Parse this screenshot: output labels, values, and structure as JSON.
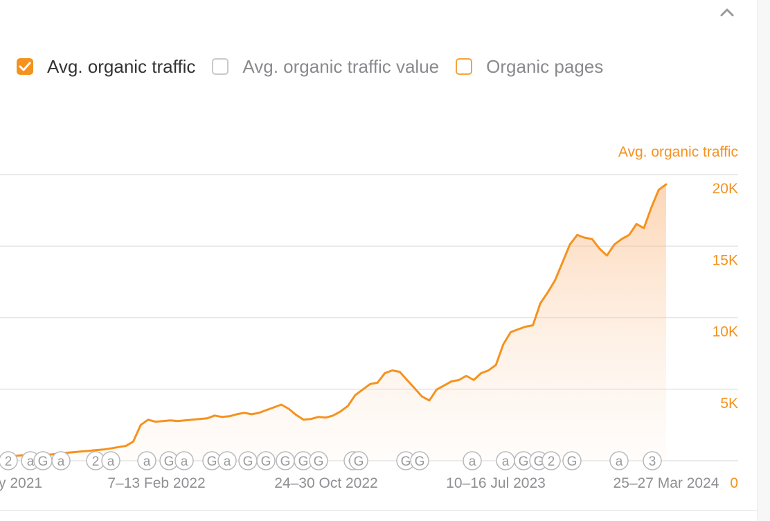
{
  "legend": {
    "items": [
      {
        "label": "Avg. organic traffic",
        "checked": true
      },
      {
        "label": "Avg. organic traffic value",
        "checked": false
      },
      {
        "label": "Organic pages",
        "checked": false
      }
    ]
  },
  "icons": {
    "collapse": "chevron-up-icon",
    "checkbox_check": "checkmark-icon"
  },
  "colors": {
    "accent": "#f5921e",
    "axis_text": "#f5921e",
    "date_text": "#8f8f94",
    "gridline": "#e4e4e6",
    "marker": "#b9b9bd"
  },
  "chart_data": {
    "type": "area",
    "ylabel": "Avg. organic traffic",
    "y_ticks": [
      0,
      5000,
      10000,
      15000,
      20000
    ],
    "y_tick_labels": [
      "0",
      "5K",
      "10K",
      "15K",
      "20K"
    ],
    "ylim": [
      0,
      20000
    ],
    "x_tick_labels": [
      "y 2021",
      "7–13 Feb 2022",
      "24–30 Oct 2022",
      "10–16 Jul 2023",
      "25–27 Mar 2024"
    ],
    "grid": true,
    "values": [
      300,
      320,
      350,
      400,
      420,
      420,
      430,
      460,
      520,
      580,
      630,
      680,
      720,
      780,
      820,
      900,
      1000,
      1080,
      1400,
      2600,
      3000,
      2850,
      2900,
      2950,
      2900,
      2950,
      3000,
      3050,
      3100,
      3300,
      3200,
      3250,
      3400,
      3500,
      3400,
      3500,
      3700,
      3900,
      4100,
      3800,
      3350,
      3000,
      3050,
      3200,
      3150,
      3300,
      3600,
      4000,
      4800,
      5200,
      5600,
      5700,
      6400,
      6600,
      6500,
      5900,
      5300,
      4700,
      4400,
      5200,
      5500,
      5800,
      5900,
      6200,
      5900,
      6400,
      6600,
      7000,
      8500,
      9400,
      9600,
      9800,
      9900,
      11500,
      12300,
      13200,
      14500,
      15800,
      16500,
      16300,
      16200,
      15500,
      15000,
      15800,
      16200,
      16500,
      17300,
      17000,
      18500,
      19800,
      20200
    ],
    "event_markers": [
      "2",
      "a",
      "G",
      "a",
      "2",
      "a",
      "a",
      "G",
      "a",
      "G",
      "a",
      "G",
      "G",
      "G",
      "G",
      "G",
      "G",
      "G",
      "G",
      "G",
      "a",
      "a",
      "G",
      "G",
      "2",
      "G",
      "a",
      "3"
    ]
  }
}
